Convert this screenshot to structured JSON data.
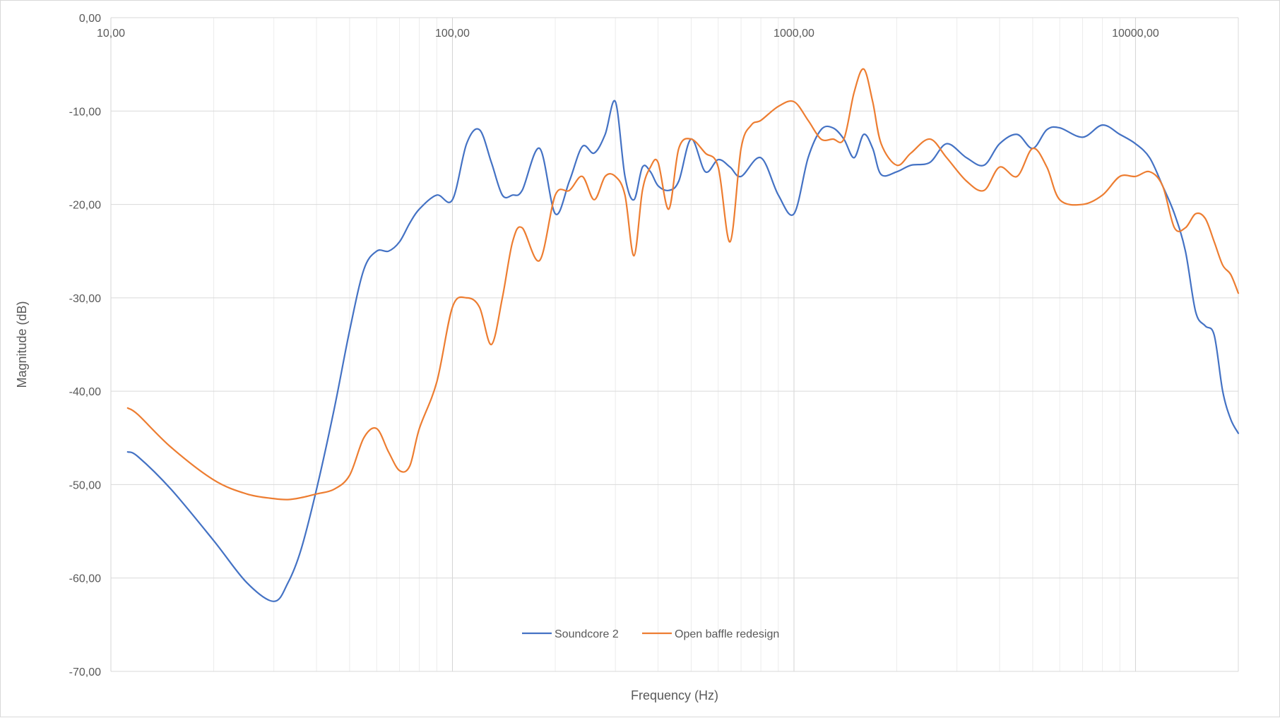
{
  "chart_data": {
    "type": "line",
    "title": "",
    "xlabel": "Frequency (Hz)",
    "ylabel": "Magnitude (dB)",
    "xscale": "log",
    "xlim": [
      10,
      20000
    ],
    "ylim": [
      -70,
      0
    ],
    "xticks": [
      10,
      100,
      1000,
      10000
    ],
    "xtick_labels": [
      "10,00",
      "100,00",
      "1000,00",
      "10000,00"
    ],
    "yticks": [
      0,
      -10,
      -20,
      -30,
      -40,
      -50,
      -60,
      -70
    ],
    "ytick_labels": [
      "0,00",
      "-10,00",
      "-20,00",
      "-30,00",
      "-40,00",
      "-50,00",
      "-60,00",
      "-70,00"
    ],
    "grid": true,
    "legend_position": "bottom-center",
    "series": [
      {
        "name": "Soundcore 2",
        "color": "#4472c4",
        "x": [
          11.2,
          12,
          15,
          20,
          25,
          30,
          33,
          36,
          40,
          45,
          50,
          55,
          60,
          65,
          70,
          75,
          80,
          90,
          100,
          110,
          120,
          130,
          140,
          150,
          160,
          180,
          200,
          220,
          240,
          260,
          280,
          300,
          320,
          340,
          360,
          380,
          400,
          430,
          460,
          500,
          550,
          600,
          650,
          700,
          800,
          900,
          1000,
          1100,
          1200,
          1300,
          1400,
          1500,
          1600,
          1700,
          1800,
          2000,
          2200,
          2500,
          2800,
          3200,
          3600,
          4000,
          4500,
          5000,
          5500,
          6000,
          7000,
          8000,
          9000,
          10000,
          11000,
          12000,
          13000,
          14000,
          15000,
          16000,
          17000,
          18000,
          19000,
          20000
        ],
        "values": [
          -46.5,
          -47.0,
          -50.5,
          -56.0,
          -60.5,
          -62.5,
          -60.5,
          -57.0,
          -50.5,
          -42.0,
          -33.5,
          -27.0,
          -25.0,
          -25.0,
          -24.0,
          -22.0,
          -20.5,
          -19.0,
          -19.5,
          -13.5,
          -12.0,
          -15.5,
          -19.0,
          -19.0,
          -18.5,
          -14.0,
          -21.0,
          -17.5,
          -13.8,
          -14.5,
          -12.5,
          -9.0,
          -17.0,
          -19.5,
          -16.0,
          -16.5,
          -18.0,
          -18.5,
          -17.5,
          -13.0,
          -16.5,
          -15.2,
          -16.0,
          -17.0,
          -15.0,
          -19.0,
          -21.0,
          -15.0,
          -12.0,
          -11.8,
          -13.0,
          -15.0,
          -12.5,
          -14.0,
          -16.8,
          -16.5,
          -15.8,
          -15.5,
          -13.5,
          -15.0,
          -15.8,
          -13.5,
          -12.5,
          -14.0,
          -12.0,
          -11.8,
          -12.8,
          -11.5,
          -12.5,
          -13.5,
          -15.0,
          -18.0,
          -21.0,
          -25.0,
          -31.5,
          -33.0,
          -34.0,
          -40.0,
          -43.0,
          -44.5
        ]
      },
      {
        "name": "Open baffle redesign",
        "color": "#ed7d31",
        "x": [
          11.2,
          12,
          15,
          20,
          25,
          30,
          33,
          36,
          40,
          45,
          50,
          55,
          60,
          65,
          70,
          75,
          80,
          90,
          100,
          110,
          120,
          130,
          140,
          150,
          160,
          180,
          200,
          220,
          240,
          260,
          280,
          300,
          320,
          340,
          360,
          380,
          400,
          430,
          460,
          500,
          550,
          600,
          650,
          700,
          750,
          800,
          900,
          1000,
          1100,
          1200,
          1300,
          1400,
          1500,
          1600,
          1700,
          1800,
          2000,
          2200,
          2500,
          2800,
          3200,
          3600,
          4000,
          4500,
          5000,
          5500,
          6000,
          7000,
          8000,
          9000,
          10000,
          11000,
          12000,
          13000,
          14000,
          15000,
          16000,
          17000,
          18000,
          19000,
          20000
        ],
        "values": [
          -41.8,
          -42.5,
          -46.0,
          -49.5,
          -51.0,
          -51.5,
          -51.6,
          -51.4,
          -51.0,
          -50.5,
          -49.0,
          -45.0,
          -44.0,
          -46.5,
          -48.5,
          -48.0,
          -44.0,
          -39.0,
          -31.0,
          -30.0,
          -31.0,
          -35.0,
          -30.0,
          -24.0,
          -22.5,
          -26.0,
          -19.0,
          -18.5,
          -17.0,
          -19.5,
          -17.0,
          -17.0,
          -19.0,
          -25.5,
          -18.5,
          -16.0,
          -15.5,
          -20.5,
          -14.0,
          -13.0,
          -14.5,
          -16.0,
          -24.0,
          -14.0,
          -11.5,
          -11.0,
          -9.5,
          -9.0,
          -11.0,
          -13.0,
          -13.0,
          -13.0,
          -8.0,
          -5.5,
          -9.0,
          -13.5,
          -15.8,
          -14.5,
          -13.0,
          -15.0,
          -17.5,
          -18.5,
          -16.0,
          -17.0,
          -14.0,
          -16.0,
          -19.5,
          -20.0,
          -19.0,
          -17.0,
          -17.0,
          -16.5,
          -18.0,
          -22.5,
          -22.5,
          -21.0,
          -21.5,
          -24.0,
          -26.5,
          -27.5,
          -29.5
        ]
      }
    ]
  }
}
